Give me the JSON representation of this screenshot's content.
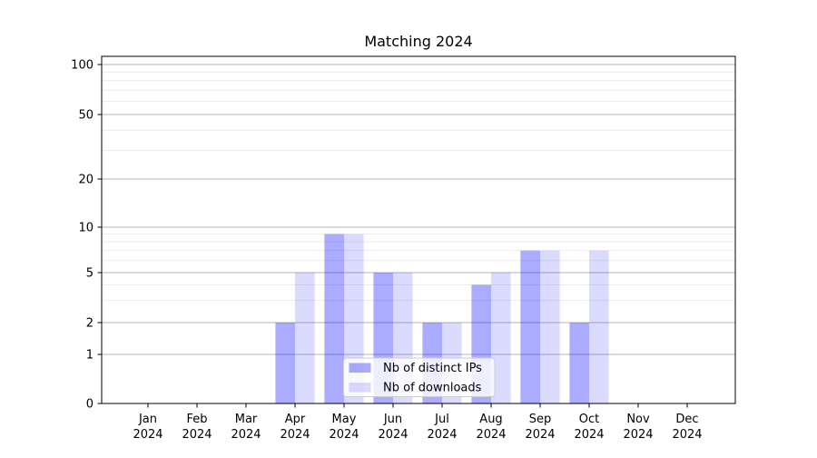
{
  "window": {
    "background": "#ffffff"
  },
  "chart_data": {
    "type": "bar",
    "title": "Matching 2024",
    "categories": [
      "Jan",
      "Feb",
      "Mar",
      "Apr",
      "May",
      "Jun",
      "Jul",
      "Aug",
      "Sep",
      "Oct",
      "Nov",
      "Dec"
    ],
    "year_label": "2024",
    "series": [
      {
        "name": "Nb of distinct IPs",
        "color": "rgba(0,0,255,0.33)",
        "values": [
          0,
          0,
          0,
          2,
          9,
          5,
          2,
          4,
          7,
          2,
          0,
          0
        ]
      },
      {
        "name": "Nb of downloads",
        "color": "rgba(0,0,255,0.14)",
        "values": [
          0,
          0,
          0,
          5,
          9,
          5,
          2,
          5,
          7,
          7,
          0,
          0
        ]
      }
    ],
    "xlabel": "",
    "ylabel": "",
    "y_major_ticks": [
      0,
      1,
      2,
      5,
      10,
      20,
      50,
      100
    ],
    "y_minor_ticks": [
      3,
      4,
      6,
      7,
      8,
      9,
      30,
      40,
      60,
      70,
      80,
      90
    ],
    "ylim": [
      0,
      112
    ],
    "yscale": "symlog-like",
    "grid": true,
    "legend_position": "lower center",
    "colors": {
      "major_grid": "#b5b5b5",
      "minor_grid": "#e8e8e8",
      "spine": "#000000",
      "legend_border": "#cccccc",
      "legend_bg": "rgba(255,255,255,0.8)"
    }
  }
}
